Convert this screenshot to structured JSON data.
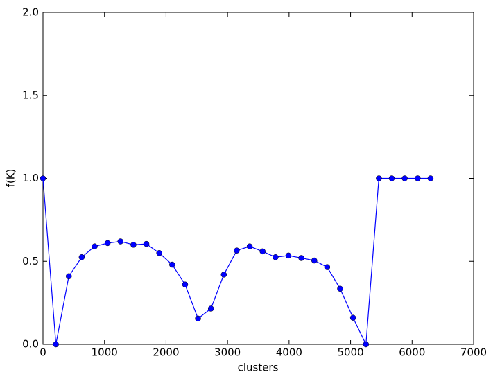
{
  "chart_data": {
    "type": "line",
    "xlabel": "clusters",
    "ylabel": "f(K)",
    "x": [
      0,
      210,
      420,
      630,
      840,
      1050,
      1260,
      1470,
      1680,
      1890,
      2100,
      2310,
      2520,
      2730,
      2940,
      3150,
      3360,
      3570,
      3780,
      3990,
      4200,
      4410,
      4620,
      4830,
      5040,
      5250,
      5460,
      5670,
      5880,
      6090,
      6300
    ],
    "series": [
      {
        "color": "#0000ff",
        "values": [
          1.0,
          0,
          0.41,
          0.525,
          0.59,
          0.61,
          0.62,
          0.6,
          0.605,
          0.55,
          0.48,
          0.36,
          0.155,
          0.215,
          0.42,
          0.565,
          0.59,
          0.56,
          0.525,
          0.535,
          0.52,
          0.505,
          0.465,
          0.335,
          0.16,
          0,
          1.0,
          1.0,
          1.0,
          1.0,
          1.0
        ]
      }
    ],
    "xlim": [
      0,
      7000
    ],
    "xticks": [
      0,
      1000,
      2000,
      3000,
      4000,
      5000,
      6000,
      7000
    ],
    "ylim": [
      0,
      2
    ],
    "yticks": [
      {
        "value": 0,
        "label": "0.0"
      },
      0.5,
      {
        "value": 1,
        "label": "1.0"
      },
      1.5,
      {
        "value": 2,
        "label": "2.0"
      }
    ],
    "grid": false
  }
}
